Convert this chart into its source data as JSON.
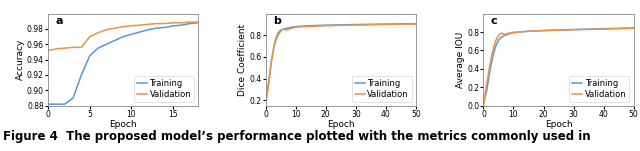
{
  "fig_width": 6.4,
  "fig_height": 1.51,
  "dpi": 100,
  "caption": "Figure 4  The proposed model’s performance plotted with the metrics commonly used in",
  "caption_fontsize": 8.5,
  "subplots": [
    {
      "label": "a",
      "ylabel": "Accuracy",
      "xlabel": "Epoch",
      "ylim": [
        0.88,
        1.0
      ],
      "xlim": [
        0,
        18
      ],
      "yticks": [
        0.88,
        0.9,
        0.92,
        0.94,
        0.96,
        0.98
      ],
      "xticks": [
        0,
        5,
        10,
        15
      ],
      "training_x": [
        0,
        0.5,
        1,
        2,
        3,
        4,
        5,
        6,
        7,
        8,
        9,
        10,
        11,
        12,
        13,
        14,
        15,
        16,
        17,
        18
      ],
      "training_y": [
        0.882,
        0.882,
        0.882,
        0.882,
        0.89,
        0.92,
        0.945,
        0.955,
        0.96,
        0.965,
        0.97,
        0.973,
        0.976,
        0.979,
        0.981,
        0.982,
        0.984,
        0.985,
        0.987,
        0.988
      ],
      "validation_x": [
        0,
        0.5,
        1,
        2,
        3,
        4,
        5,
        6,
        7,
        8,
        9,
        10,
        11,
        12,
        13,
        14,
        15,
        16,
        17,
        18
      ],
      "validation_y": [
        0.952,
        0.953,
        0.954,
        0.955,
        0.956,
        0.956,
        0.97,
        0.975,
        0.979,
        0.981,
        0.983,
        0.984,
        0.985,
        0.986,
        0.987,
        0.987,
        0.988,
        0.988,
        0.989,
        0.989
      ],
      "legend_loc": "lower right"
    },
    {
      "label": "b",
      "ylabel": "Dice Coefficient",
      "xlabel": "Epoch",
      "ylim": [
        0.15,
        1.0
      ],
      "xlim": [
        0,
        50
      ],
      "yticks": [
        0.2,
        0.4,
        0.6,
        0.8
      ],
      "xticks": [
        0,
        10,
        20,
        30,
        40,
        50
      ],
      "training_x": [
        0,
        1,
        2,
        3,
        4,
        5,
        6,
        7,
        8,
        9,
        10,
        12,
        15,
        20,
        25,
        30,
        35,
        40,
        45,
        50
      ],
      "training_y": [
        0.18,
        0.38,
        0.58,
        0.72,
        0.8,
        0.84,
        0.858,
        0.865,
        0.87,
        0.876,
        0.88,
        0.884,
        0.888,
        0.893,
        0.896,
        0.899,
        0.901,
        0.903,
        0.905,
        0.907
      ],
      "validation_x": [
        0,
        1,
        2,
        3,
        4,
        5,
        6,
        7,
        8,
        9,
        10,
        12,
        15,
        20,
        25,
        30,
        35,
        40,
        45,
        50
      ],
      "validation_y": [
        0.17,
        0.35,
        0.58,
        0.74,
        0.82,
        0.85,
        0.855,
        0.848,
        0.86,
        0.868,
        0.874,
        0.878,
        0.882,
        0.888,
        0.891,
        0.894,
        0.897,
        0.9,
        0.902,
        0.904
      ],
      "legend_loc": "lower right"
    },
    {
      "label": "c",
      "ylabel": "Average IOU",
      "xlabel": "Epoch",
      "ylim": [
        0.0,
        1.0
      ],
      "xlim": [
        0,
        50
      ],
      "yticks": [
        0.0,
        0.2,
        0.4,
        0.6,
        0.8
      ],
      "xticks": [
        0,
        10,
        20,
        30,
        40,
        50
      ],
      "training_x": [
        0,
        1,
        2,
        3,
        4,
        5,
        6,
        7,
        8,
        9,
        10,
        12,
        15,
        20,
        25,
        30,
        35,
        40,
        45,
        50
      ],
      "training_y": [
        0.02,
        0.15,
        0.35,
        0.52,
        0.64,
        0.71,
        0.745,
        0.762,
        0.775,
        0.784,
        0.792,
        0.8,
        0.808,
        0.816,
        0.822,
        0.827,
        0.832,
        0.836,
        0.84,
        0.845
      ],
      "validation_x": [
        0,
        1,
        2,
        3,
        4,
        5,
        6,
        7,
        8,
        9,
        10,
        12,
        15,
        20,
        25,
        30,
        35,
        40,
        45,
        50
      ],
      "validation_y": [
        0.01,
        0.22,
        0.42,
        0.58,
        0.7,
        0.762,
        0.788,
        0.775,
        0.784,
        0.79,
        0.796,
        0.802,
        0.808,
        0.815,
        0.82,
        0.824,
        0.828,
        0.832,
        0.836,
        0.839
      ],
      "legend_loc": "lower right"
    }
  ],
  "training_color": "#5599d8",
  "validation_color": "#f0923e",
  "line_width": 1.1,
  "label_fontsize": 6.5,
  "tick_fontsize": 5.5,
  "legend_fontsize": 6.0,
  "subplot_label_fontsize": 8,
  "bg_color": "#ffffff"
}
